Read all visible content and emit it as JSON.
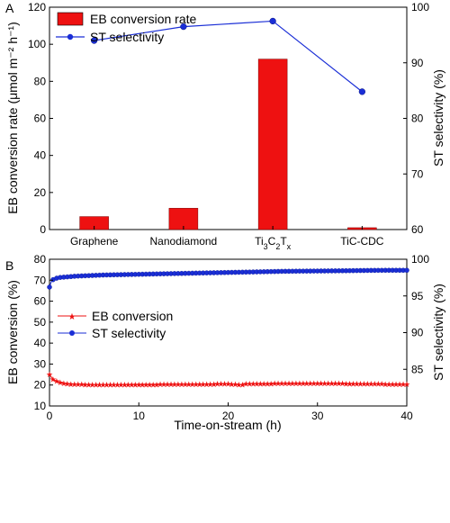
{
  "chart_data": [
    {
      "panel_label": "A",
      "type": "bar",
      "categories": [
        "Graphene",
        "Nanodiamond",
        "Ti3C2Tx",
        "TiC-CDC"
      ],
      "series": [
        {
          "name": "EB conversion rate",
          "type": "bar",
          "axis": "left",
          "color": "#ee1111",
          "values": [
            7,
            11.5,
            92,
            1
          ]
        },
        {
          "name": "ST selectivity",
          "type": "line",
          "axis": "right",
          "color": "#1a2ed6",
          "values": [
            94,
            96.5,
            97.5,
            84.8
          ]
        }
      ],
      "ylabel": "EB conversion rate (μmol m⁻² h⁻¹)",
      "y2label": "ST selectivity (%)",
      "ylim": [
        0,
        120
      ],
      "y2lim": [
        60,
        100
      ],
      "yticks": [
        0,
        20,
        40,
        60,
        80,
        100,
        120
      ],
      "y2ticks": [
        60,
        70,
        80,
        90,
        100
      ],
      "legend_position": "top-left"
    },
    {
      "panel_label": "B",
      "type": "line",
      "xlabel": "Time-on-stream (h)",
      "ylabel": "EB conversion (%)",
      "y2label": "ST selectivity (%)",
      "xlim": [
        0,
        40
      ],
      "ylim": [
        10,
        80
      ],
      "y2lim": [
        80,
        100
      ],
      "xticks": [
        0,
        10,
        20,
        30,
        40
      ],
      "yticks": [
        10,
        20,
        30,
        40,
        50,
        60,
        70,
        80
      ],
      "y2ticks": [
        85,
        90,
        95,
        100
      ],
      "legend_position": "middle-left",
      "series": [
        {
          "name": "EB conversion",
          "axis": "left",
          "color": "#ee1111",
          "marker": "star",
          "x": [
            0,
            0.25,
            0.5,
            1,
            1.5,
            2,
            3,
            4,
            5,
            6,
            8,
            10,
            12,
            14,
            16,
            18,
            20,
            21.5,
            22,
            24,
            26,
            28,
            30,
            32,
            34,
            36,
            38,
            40
          ],
          "y": [
            25.2,
            23.5,
            22.4,
            21.6,
            21.0,
            20.7,
            20.5,
            20.4,
            20.3,
            20.3,
            20.3,
            20.4,
            20.4,
            20.5,
            20.5,
            20.6,
            20.7,
            20.2,
            20.8,
            20.8,
            20.9,
            20.9,
            21.0,
            20.9,
            20.8,
            20.7,
            20.6,
            20.5
          ]
        },
        {
          "name": "ST selectivity",
          "axis": "right",
          "color": "#1a2ed6",
          "marker": "circle",
          "x": [
            0,
            0.25,
            0.5,
            1,
            2,
            3,
            4,
            6,
            8,
            10,
            12,
            14,
            16,
            18,
            20,
            22,
            24,
            26,
            28,
            30,
            32,
            34,
            36,
            38,
            40
          ],
          "y": [
            96.2,
            97.1,
            97.3,
            97.5,
            97.6,
            97.7,
            97.75,
            97.85,
            97.9,
            97.95,
            98.0,
            98.05,
            98.1,
            98.15,
            98.2,
            98.25,
            98.3,
            98.35,
            98.38,
            98.4,
            98.42,
            98.45,
            98.48,
            98.5,
            98.5
          ]
        }
      ]
    }
  ]
}
